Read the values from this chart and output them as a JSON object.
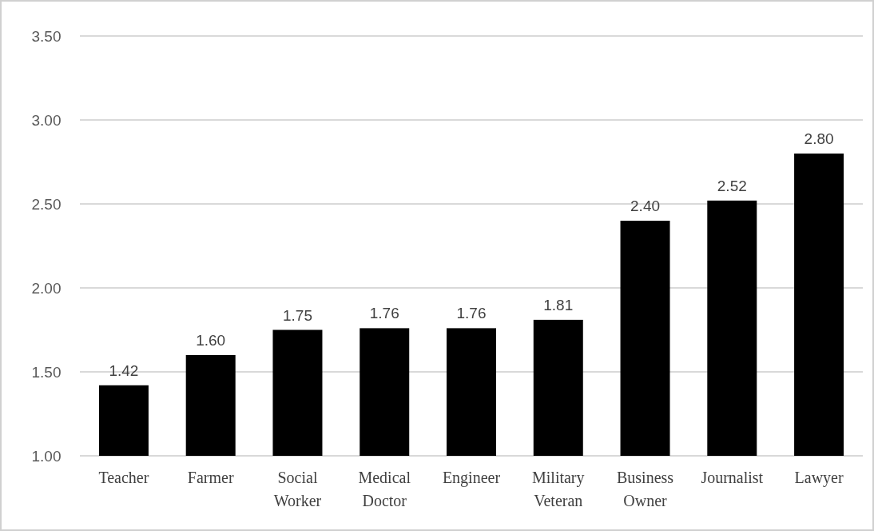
{
  "chart_data": {
    "type": "bar",
    "categories": [
      "Teacher",
      "Farmer",
      "Social Worker",
      "Medical Doctor",
      "Engineer",
      "Military Veteran",
      "Business Owner",
      "Journalist",
      "Lawyer"
    ],
    "values": [
      1.42,
      1.6,
      1.75,
      1.76,
      1.76,
      1.81,
      2.4,
      2.52,
      2.8
    ],
    "value_labels": [
      "1.42",
      "1.60",
      "1.75",
      "1.76",
      "1.76",
      "1.81",
      "2.40",
      "2.52",
      "2.80"
    ],
    "color": "#000000",
    "ylim": [
      1,
      3.5
    ],
    "yticks": [
      {
        "value": 1,
        "label": "1.00"
      },
      {
        "value": 1.5,
        "label": "1.50"
      },
      {
        "value": 2,
        "label": "2.00"
      },
      {
        "value": 2.5,
        "label": "2.50"
      },
      {
        "value": 3,
        "label": "3.00"
      },
      {
        "value": 3.5,
        "label": "3.50"
      }
    ],
    "grid": "y"
  }
}
